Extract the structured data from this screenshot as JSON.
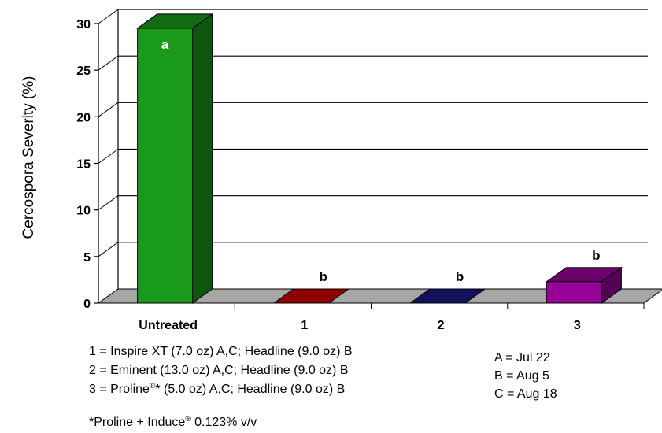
{
  "chart_data": {
    "type": "bar",
    "categories": [
      "Untreated",
      "1",
      "2",
      "3"
    ],
    "values": [
      29.5,
      0,
      0,
      2.3
    ],
    "data_labels": [
      "a",
      "b",
      "b",
      "b"
    ],
    "colors": [
      "#1a9a1a",
      "#cc0000",
      "#1a1a80",
      "#990099"
    ],
    "ylabel": "Cercospora Severity (%)",
    "ylim": [
      0,
      30
    ],
    "yticks": [
      0,
      5,
      10,
      15,
      20,
      25,
      30
    ],
    "grid": true,
    "legend": {
      "treatments": [
        {
          "pre": "1 = Inspire XT (7.0 oz) A,C; Headline (9.0 oz) B",
          "sup": "",
          "post": ""
        },
        {
          "pre": "2 = Eminent (13.0 oz) A,C; Headline (9.0 oz) B",
          "sup": "",
          "post": ""
        },
        {
          "pre": "3 = Proline",
          "sup": "®",
          "post": "* (5.0 oz) A,C; Headline (9.0 oz) B"
        }
      ],
      "dates": [
        "A = Jul 22",
        "B = Aug 5",
        "C = Aug 18"
      ],
      "footnote": {
        "pre": "*Proline + Induce",
        "sup": "®",
        "post": " 0.123% v/v"
      }
    }
  }
}
